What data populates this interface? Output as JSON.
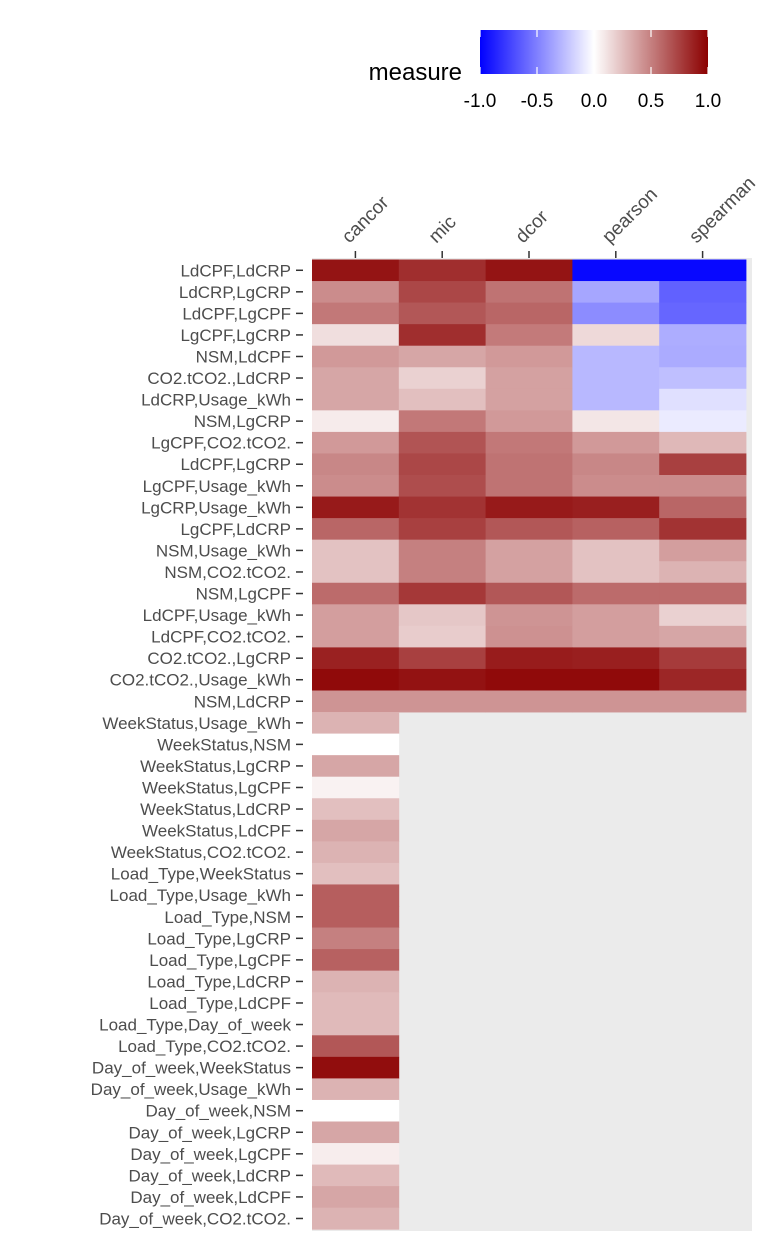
{
  "chart_data": {
    "type": "heatmap",
    "legend": {
      "title": "measure",
      "ticks": [
        "-1.0",
        "-0.5",
        "0.0",
        "0.5",
        "1.0"
      ],
      "range": [
        -1,
        1
      ],
      "placement": "top",
      "colors": {
        "low": "#0000ff",
        "mid": "#ffffff",
        "high": "#8b0000"
      }
    },
    "na_color": "#ebebeb",
    "columns": [
      "cancor",
      "mic",
      "dcor",
      "pearson",
      "spearman"
    ],
    "rows": [
      "LdCPF,LdCRP",
      "LdCRP,LgCRP",
      "LdCPF,LgCPF",
      "LgCPF,LgCRP",
      "NSM,LdCPF",
      "CO2.tCO2.,LdCRP",
      "LdCRP,Usage_kWh",
      "NSM,LgCRP",
      "LgCPF,CO2.tCO2.",
      "LdCPF,LgCRP",
      "LgCPF,Usage_kWh",
      "LgCRP,Usage_kWh",
      "LgCPF,LdCRP",
      "NSM,Usage_kWh",
      "NSM,CO2.tCO2.",
      "NSM,LgCPF",
      "LdCPF,Usage_kWh",
      "LdCPF,CO2.tCO2.",
      "CO2.tCO2.,LgCRP",
      "CO2.tCO2.,Usage_kWh",
      "NSM,LdCRP",
      "WeekStatus,Usage_kWh",
      "WeekStatus,NSM",
      "WeekStatus,LgCRP",
      "WeekStatus,LgCPF",
      "WeekStatus,LdCRP",
      "WeekStatus,LdCPF",
      "WeekStatus,CO2.tCO2.",
      "Load_Type,WeekStatus",
      "Load_Type,Usage_kWh",
      "Load_Type,NSM",
      "Load_Type,LgCRP",
      "Load_Type,LgCPF",
      "Load_Type,LdCRP",
      "Load_Type,LdCPF",
      "Load_Type,Day_of_week",
      "Load_Type,CO2.tCO2.",
      "Day_of_week,WeekStatus",
      "Day_of_week,Usage_kWh",
      "Day_of_week,NSM",
      "Day_of_week,LgCRP",
      "Day_of_week,LgCPF",
      "Day_of_week,LdCRP",
      "Day_of_week,LdCPF",
      "Day_of_week,CO2.tCO2."
    ],
    "values": [
      [
        0.92,
        0.82,
        0.92,
        -0.97,
        -0.97
      ],
      [
        0.45,
        0.72,
        0.55,
        -0.35,
        -0.62
      ],
      [
        0.53,
        0.66,
        0.6,
        -0.45,
        -0.6
      ],
      [
        0.13,
        0.82,
        0.52,
        0.15,
        -0.32
      ],
      [
        0.4,
        0.35,
        0.4,
        -0.28,
        -0.33
      ],
      [
        0.35,
        0.18,
        0.37,
        -0.28,
        -0.25
      ],
      [
        0.35,
        0.25,
        0.37,
        -0.28,
        -0.12
      ],
      [
        0.08,
        0.53,
        0.4,
        0.1,
        -0.08
      ],
      [
        0.4,
        0.67,
        0.53,
        0.4,
        0.28
      ],
      [
        0.47,
        0.72,
        0.55,
        0.47,
        0.75
      ],
      [
        0.45,
        0.7,
        0.55,
        0.45,
        0.45
      ],
      [
        0.9,
        0.8,
        0.9,
        0.88,
        0.6
      ],
      [
        0.6,
        0.75,
        0.66,
        0.62,
        0.8
      ],
      [
        0.24,
        0.5,
        0.37,
        0.24,
        0.38
      ],
      [
        0.24,
        0.5,
        0.37,
        0.24,
        0.3
      ],
      [
        0.58,
        0.78,
        0.66,
        0.58,
        0.58
      ],
      [
        0.38,
        0.22,
        0.42,
        0.38,
        0.18
      ],
      [
        0.38,
        0.2,
        0.43,
        0.38,
        0.35
      ],
      [
        0.87,
        0.75,
        0.89,
        0.88,
        0.77
      ],
      [
        0.96,
        0.93,
        0.96,
        0.96,
        0.85
      ],
      [
        0.42,
        0.42,
        0.42,
        0.42,
        0.42
      ],
      [
        0.3,
        null,
        null,
        null,
        null
      ],
      [
        0.0,
        null,
        null,
        null,
        null
      ],
      [
        0.35,
        null,
        null,
        null,
        null
      ],
      [
        0.05,
        null,
        null,
        null,
        null
      ],
      [
        0.25,
        null,
        null,
        null,
        null
      ],
      [
        0.35,
        null,
        null,
        null,
        null
      ],
      [
        0.3,
        null,
        null,
        null,
        null
      ],
      [
        0.25,
        null,
        null,
        null,
        null
      ],
      [
        0.63,
        null,
        null,
        null,
        null
      ],
      [
        0.63,
        null,
        null,
        null,
        null
      ],
      [
        0.5,
        null,
        null,
        null,
        null
      ],
      [
        0.62,
        null,
        null,
        null,
        null
      ],
      [
        0.3,
        null,
        null,
        null,
        null
      ],
      [
        0.27,
        null,
        null,
        null,
        null
      ],
      [
        0.27,
        null,
        null,
        null,
        null
      ],
      [
        0.66,
        null,
        null,
        null,
        null
      ],
      [
        0.95,
        null,
        null,
        null,
        null
      ],
      [
        0.3,
        null,
        null,
        null,
        null
      ],
      [
        0.0,
        null,
        null,
        null,
        null
      ],
      [
        0.35,
        null,
        null,
        null,
        null
      ],
      [
        0.07,
        null,
        null,
        null,
        null
      ],
      [
        0.27,
        null,
        null,
        null,
        null
      ],
      [
        0.35,
        null,
        null,
        null,
        null
      ],
      [
        0.3,
        null,
        null,
        null,
        null
      ]
    ]
  }
}
